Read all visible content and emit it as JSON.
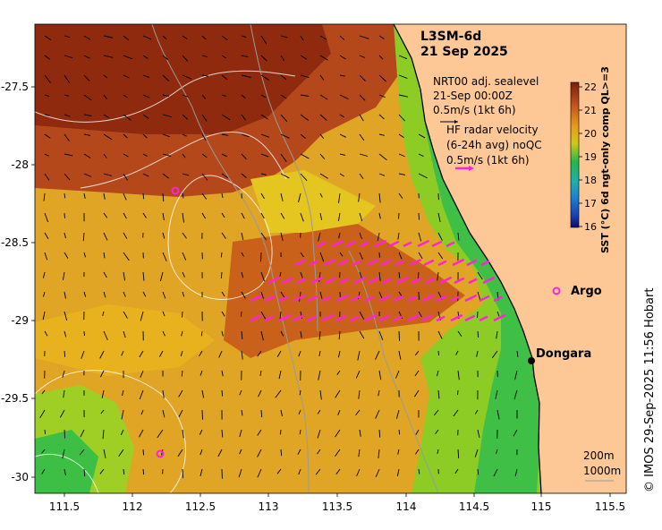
{
  "title": "L3SM-6d",
  "date": "21 Sep 2025",
  "sealevel": {
    "line1": "NRT00 adj. sealevel",
    "line2": "21-Sep 00:00Z",
    "scale": "0.5m/s (1kt 6h)"
  },
  "radar": {
    "line1": "HF radar velocity",
    "line2": "(6-24h avg) noQC",
    "scale": "0.5m/s (1kt 6h)"
  },
  "colorbar": {
    "label": "SST (°C) 6d ngt-only comp QL>=3",
    "ticks": [
      "22",
      "21",
      "20",
      "19",
      "18",
      "17",
      "16"
    ],
    "colors": [
      "#7a1f0a",
      "#b04a14",
      "#d96a16",
      "#e8a11c",
      "#d6c21a",
      "#8fcf25",
      "#22b84b",
      "#1fb3a0",
      "#1a7fd0",
      "#1a3fb0",
      "#0a0a6a"
    ]
  },
  "axes": {
    "x_ticks": [
      "111.5",
      "112",
      "112.5",
      "113",
      "113.5",
      "114",
      "114.5",
      "115",
      "115.5"
    ],
    "y_ticks": [
      "-27.5",
      "-28",
      "-28.5",
      "-29",
      "-29.5",
      "-30"
    ]
  },
  "labels": {
    "argo": "Argo",
    "dongara": "Dongara",
    "contour_200": "200m",
    "contour_1000": "1000m"
  },
  "credit": "© IMOS 29-Sep-2025 11:56 Hobart",
  "colors": {
    "land": "#fdc896",
    "radar_arrow": "#ff22dd",
    "argo_marker": "#ff22dd"
  }
}
